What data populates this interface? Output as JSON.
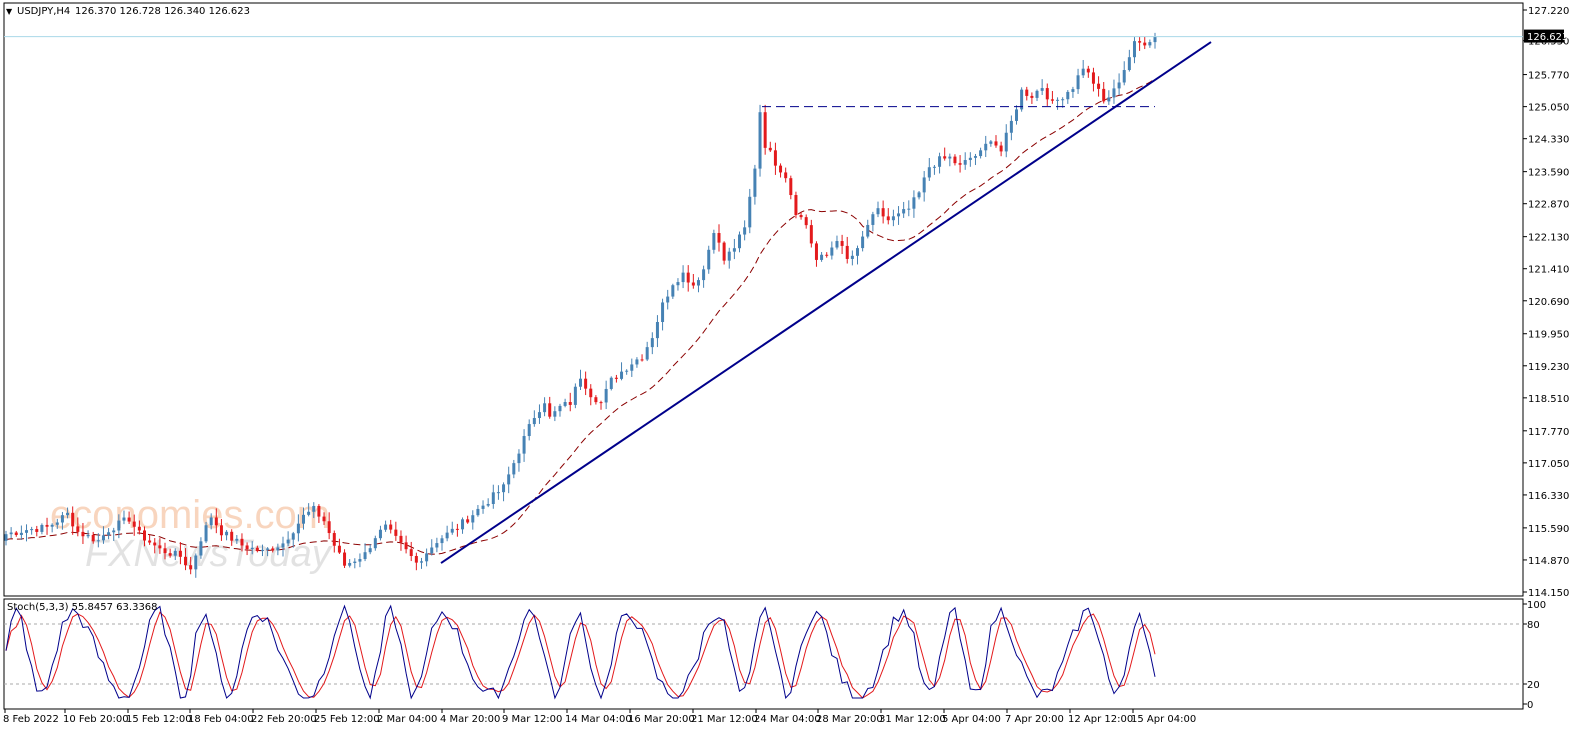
{
  "chart_data": {
    "type": "candlestick",
    "symbol_header": "USDJPY,H4",
    "ohlc_header": "126.370 126.728 126.340 126.623",
    "current_price_label": "126.623",
    "y_ticks": [
      "127.220",
      "126.530",
      "125.770",
      "125.050",
      "124.330",
      "123.590",
      "122.870",
      "122.130",
      "121.410",
      "120.690",
      "119.950",
      "119.230",
      "118.510",
      "117.770",
      "117.050",
      "116.330",
      "115.590",
      "114.870",
      "114.150"
    ],
    "ylim": [
      114.15,
      127.22
    ],
    "x_ticks": [
      "8 Feb 2022",
      "10 Feb 20:00",
      "15 Feb 12:00",
      "18 Feb 04:00",
      "22 Feb 20:00",
      "25 Feb 12:00",
      "2 Mar 04:00",
      "4 Mar 20:00",
      "9 Mar 12:00",
      "14 Mar 04:00",
      "16 Mar 20:00",
      "21 Mar 12:00",
      "24 Mar 04:00",
      "28 Mar 20:00",
      "31 Mar 12:00",
      "5 Apr 04:00",
      "7 Apr 20:00",
      "12 Apr 12:00",
      "15 Apr 04:00"
    ],
    "price_path_anchors": [
      [
        0,
        115.45
      ],
      [
        4,
        115.55
      ],
      [
        8,
        115.6
      ],
      [
        12,
        115.9
      ],
      [
        14,
        115.5
      ],
      [
        18,
        115.3
      ],
      [
        20,
        115.55
      ],
      [
        24,
        115.8
      ],
      [
        26,
        115.45
      ],
      [
        30,
        115.1
      ],
      [
        34,
        114.95
      ],
      [
        36,
        114.65
      ],
      [
        38,
        115.35
      ],
      [
        40,
        115.85
      ],
      [
        42,
        115.5
      ],
      [
        46,
        115.2
      ],
      [
        50,
        115.05
      ],
      [
        54,
        115.25
      ],
      [
        58,
        115.85
      ],
      [
        60,
        116.0
      ],
      [
        62,
        115.75
      ],
      [
        64,
        115.2
      ],
      [
        66,
        114.75
      ],
      [
        70,
        115.0
      ],
      [
        72,
        115.4
      ],
      [
        74,
        115.6
      ],
      [
        77,
        115.2
      ],
      [
        80,
        114.8
      ],
      [
        84,
        115.3
      ],
      [
        88,
        115.6
      ],
      [
        92,
        116.0
      ],
      [
        95,
        116.3
      ],
      [
        97,
        116.5
      ],
      [
        99,
        117.05
      ],
      [
        101,
        117.6
      ],
      [
        103,
        118.1
      ],
      [
        105,
        118.45
      ],
      [
        106,
        118.05
      ],
      [
        108,
        118.3
      ],
      [
        110,
        118.4
      ],
      [
        112,
        119.0
      ],
      [
        114,
        118.6
      ],
      [
        116,
        118.4
      ],
      [
        118,
        118.9
      ],
      [
        120,
        119.1
      ],
      [
        122,
        119.3
      ],
      [
        124,
        119.45
      ],
      [
        126,
        119.9
      ],
      [
        128,
        120.6
      ],
      [
        130,
        121.1
      ],
      [
        132,
        121.3
      ],
      [
        134,
        121.05
      ],
      [
        136,
        121.4
      ],
      [
        138,
        122.3
      ],
      [
        140,
        121.6
      ],
      [
        142,
        121.9
      ],
      [
        144,
        122.3
      ],
      [
        146,
        123.7
      ],
      [
        147,
        124.95
      ],
      [
        148,
        124.2
      ],
      [
        150,
        123.8
      ],
      [
        152,
        123.5
      ],
      [
        154,
        122.7
      ],
      [
        156,
        122.4
      ],
      [
        158,
        121.6
      ],
      [
        160,
        121.7
      ],
      [
        162,
        122.1
      ],
      [
        164,
        121.6
      ],
      [
        166,
        121.8
      ],
      [
        168,
        122.4
      ],
      [
        170,
        122.7
      ],
      [
        172,
        122.5
      ],
      [
        174,
        122.6
      ],
      [
        176,
        122.75
      ],
      [
        178,
        123.1
      ],
      [
        180,
        123.7
      ],
      [
        182,
        123.85
      ],
      [
        184,
        123.9
      ],
      [
        186,
        123.7
      ],
      [
        188,
        123.9
      ],
      [
        190,
        124.0
      ],
      [
        192,
        124.35
      ],
      [
        194,
        124.05
      ],
      [
        196,
        124.7
      ],
      [
        198,
        125.4
      ],
      [
        200,
        125.3
      ],
      [
        202,
        125.5
      ],
      [
        204,
        125.1
      ],
      [
        206,
        125.3
      ],
      [
        208,
        125.5
      ],
      [
        210,
        125.95
      ],
      [
        212,
        125.6
      ],
      [
        214,
        125.15
      ],
      [
        216,
        125.4
      ],
      [
        218,
        125.9
      ],
      [
        220,
        126.45
      ],
      [
        222,
        126.5
      ],
      [
        224,
        126.62
      ]
    ],
    "trendline": {
      "from": [
        114.8,
        "4 Mar 20:00"
      ],
      "to": [
        126.5,
        "after 15 Apr 04:00"
      ]
    },
    "resistance_level": 125.05,
    "moving_average": "dashed dark red, lagging below price",
    "colors": {
      "bull": "#4682b4",
      "bear": "#e31a1c",
      "ma": "#8b0000",
      "trendline": "#00008b",
      "dashed_level": "#00008b",
      "stoch_main": "#00008b",
      "stoch_signal": "#e31a1c",
      "price_line": "#a9d8e8"
    },
    "stochastic": {
      "header": "Stoch(5,3,3) 55.8457 63.3368",
      "y_ticks": [
        "100",
        "80",
        "20",
        "0"
      ],
      "levels": [
        80,
        20
      ],
      "range": [
        0,
        100
      ]
    }
  },
  "watermark": {
    "line1": "economies.com",
    "line2": "FXNewsToday"
  }
}
